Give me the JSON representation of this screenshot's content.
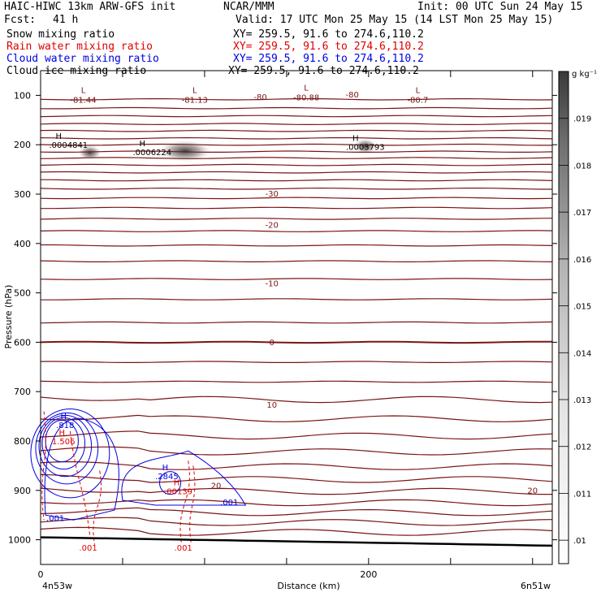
{
  "header": {
    "model": "HAIC-HIWC 13km ARW-GFS init",
    "org": "NCAR/MMM",
    "init": "Init: 00 UTC Sun 24 May 15",
    "fcst_label": "Fcst:",
    "fcst_value": "41 h",
    "valid": "Valid: 17 UTC Mon 25 May 15 (14 LST Mon 25 May 15)",
    "fields": [
      {
        "name": "Snow mixing ratio",
        "xy": "XY= 259.5, 91.6 to 274.6,110.2",
        "color": "#000000"
      },
      {
        "name": "Rain water mixing ratio",
        "xy": "XY= 259.5, 91.6 to 274.6,110.2",
        "color": "#e00000"
      },
      {
        "name": "Cloud water mixing ratio",
        "xy": "XY= 259.5, 91.6 to 274.6,110.2",
        "color": "#0000e0"
      },
      {
        "name": "Cloud ice mixing ratio",
        "xy": "XY= 259.5, 91.6 to 274.6,110.2",
        "color": "#000000"
      }
    ]
  },
  "chart_data": {
    "type": "cross-section",
    "xlabel": "Distance (km)",
    "ylabel": "Pressure (hPa)",
    "x_ticks": [
      0,
      200
    ],
    "x_tick_labels": [
      "0",
      "200"
    ],
    "x_range_km": [
      0,
      312
    ],
    "y_ticks": [
      100,
      200,
      300,
      400,
      500,
      600,
      700,
      800,
      900,
      1000
    ],
    "y_range_hpa": [
      50,
      1050
    ],
    "y_scale": "linear",
    "endpoint_left": "4n53w",
    "endpoint_right": "6n51w",
    "colorbar": {
      "unit": "g kg⁻¹",
      "tick_labels": [
        ".01",
        ".011",
        ".012",
        ".013",
        ".014",
        ".015",
        ".016",
        ".017",
        ".018",
        ".019"
      ],
      "min": 0.0095,
      "max": 0.02
    },
    "temperature_contours": {
      "color": "#7a1515",
      "labels": [
        {
          "text": "-80",
          "x": 134,
          "p": 104
        },
        {
          "text": "-80",
          "x": 190,
          "p": 99
        },
        {
          "text": "-30",
          "x": 141,
          "p": 300
        },
        {
          "text": "-20",
          "x": 141,
          "p": 363
        },
        {
          "text": "-10",
          "x": 141,
          "p": 482
        },
        {
          "text": "0",
          "x": 141,
          "p": 601
        },
        {
          "text": "10",
          "x": 141,
          "p": 728
        },
        {
          "text": "20",
          "x": 107,
          "p": 891
        },
        {
          "text": "20",
          "x": 300,
          "p": 901
        }
      ],
      "lows": [
        {
          "text": "-81.44",
          "x": 25,
          "p": 105
        },
        {
          "text": "-81.13",
          "x": 93,
          "p": 105
        },
        {
          "text": "-80.88",
          "x": 161,
          "p": 100
        },
        {
          "text": "-80.7",
          "x": 229,
          "p": 105
        }
      ]
    },
    "snow_highs": [
      {
        "text": ".0004841",
        "x": 17,
        "p": 205
      },
      {
        "text": ".0006224",
        "x": 68,
        "p": 219
      },
      {
        "text": ".0003793",
        "x": 198,
        "p": 209
      }
    ],
    "cloud_water": {
      "color": "#0000e0",
      "highs": [
        {
          "text": ".818",
          "x": 12,
          "p": 772
        },
        {
          "text": ".2845",
          "x": 74,
          "p": 876
        }
      ],
      "labels": [
        {
          "text": ".001",
          "x": 9,
          "p": 957
        },
        {
          "text": ".001",
          "x": 115,
          "p": 925
        }
      ]
    },
    "rain_water": {
      "color": "#e00000",
      "highs": [
        {
          "text": "1.506",
          "x": 11,
          "p": 805
        },
        {
          "text": ".00139",
          "x": 81,
          "p": 906
        }
      ],
      "labels": [
        {
          "text": ".001",
          "x": 29,
          "p": 1017
        },
        {
          "text": ".001",
          "x": 87,
          "p": 1017
        }
      ]
    },
    "low_symbol": "L",
    "high_symbol": "H"
  }
}
